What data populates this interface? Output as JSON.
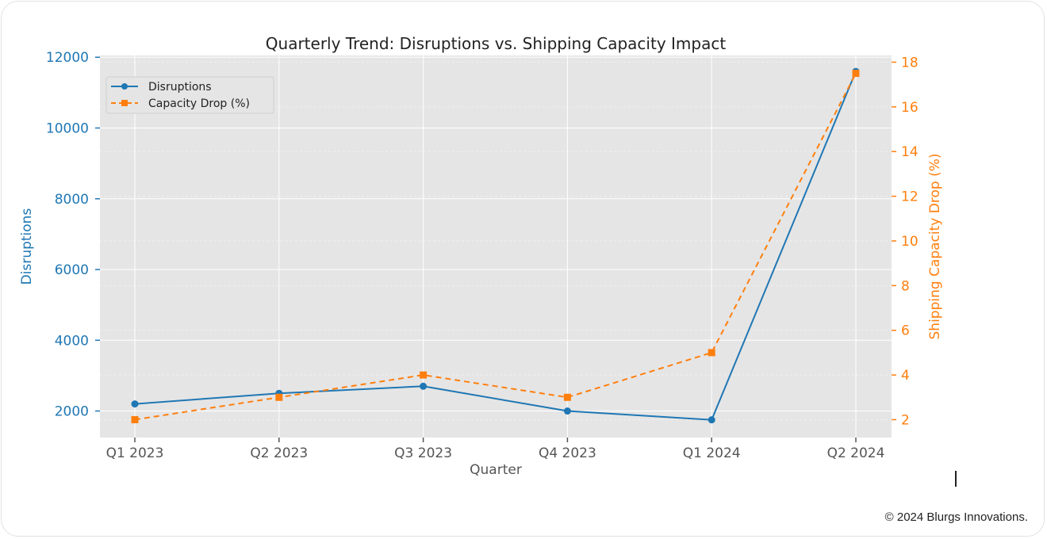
{
  "chart_data": {
    "type": "line",
    "title": "Quarterly Trend: Disruptions vs. Shipping Capacity Impact",
    "xlabel": "Quarter",
    "categories": [
      "Q1 2023",
      "Q2 2023",
      "Q3 2023",
      "Q4 2023",
      "Q1 2024",
      "Q2 2024"
    ],
    "series": [
      {
        "name": "Disruptions",
        "axis": "left",
        "color": "#1f77b4",
        "marker": "circle",
        "line_style": "solid",
        "values": [
          2200,
          2500,
          2700,
          2000,
          1750,
          11600
        ]
      },
      {
        "name": "Capacity Drop (%)",
        "axis": "right",
        "color": "#ff7f0e",
        "marker": "square",
        "line_style": "dashed",
        "values": [
          2,
          3,
          4,
          3,
          5,
          17.5
        ]
      }
    ],
    "y_left": {
      "label": "Disruptions",
      "color": "#1f77b4",
      "ticks": [
        2000,
        4000,
        6000,
        8000,
        10000,
        12000
      ],
      "range": [
        1250,
        12050
      ]
    },
    "y_right": {
      "label": "Shipping Capacity Drop (%)",
      "color": "#ff7f0e",
      "ticks": [
        2,
        4,
        6,
        8,
        10,
        12,
        14,
        16,
        18
      ],
      "range": [
        1.2,
        18.3
      ]
    },
    "grid": true,
    "legend_position": "top-left"
  },
  "footer": {
    "copyright": "© 2024 Blurgs Innovations."
  }
}
